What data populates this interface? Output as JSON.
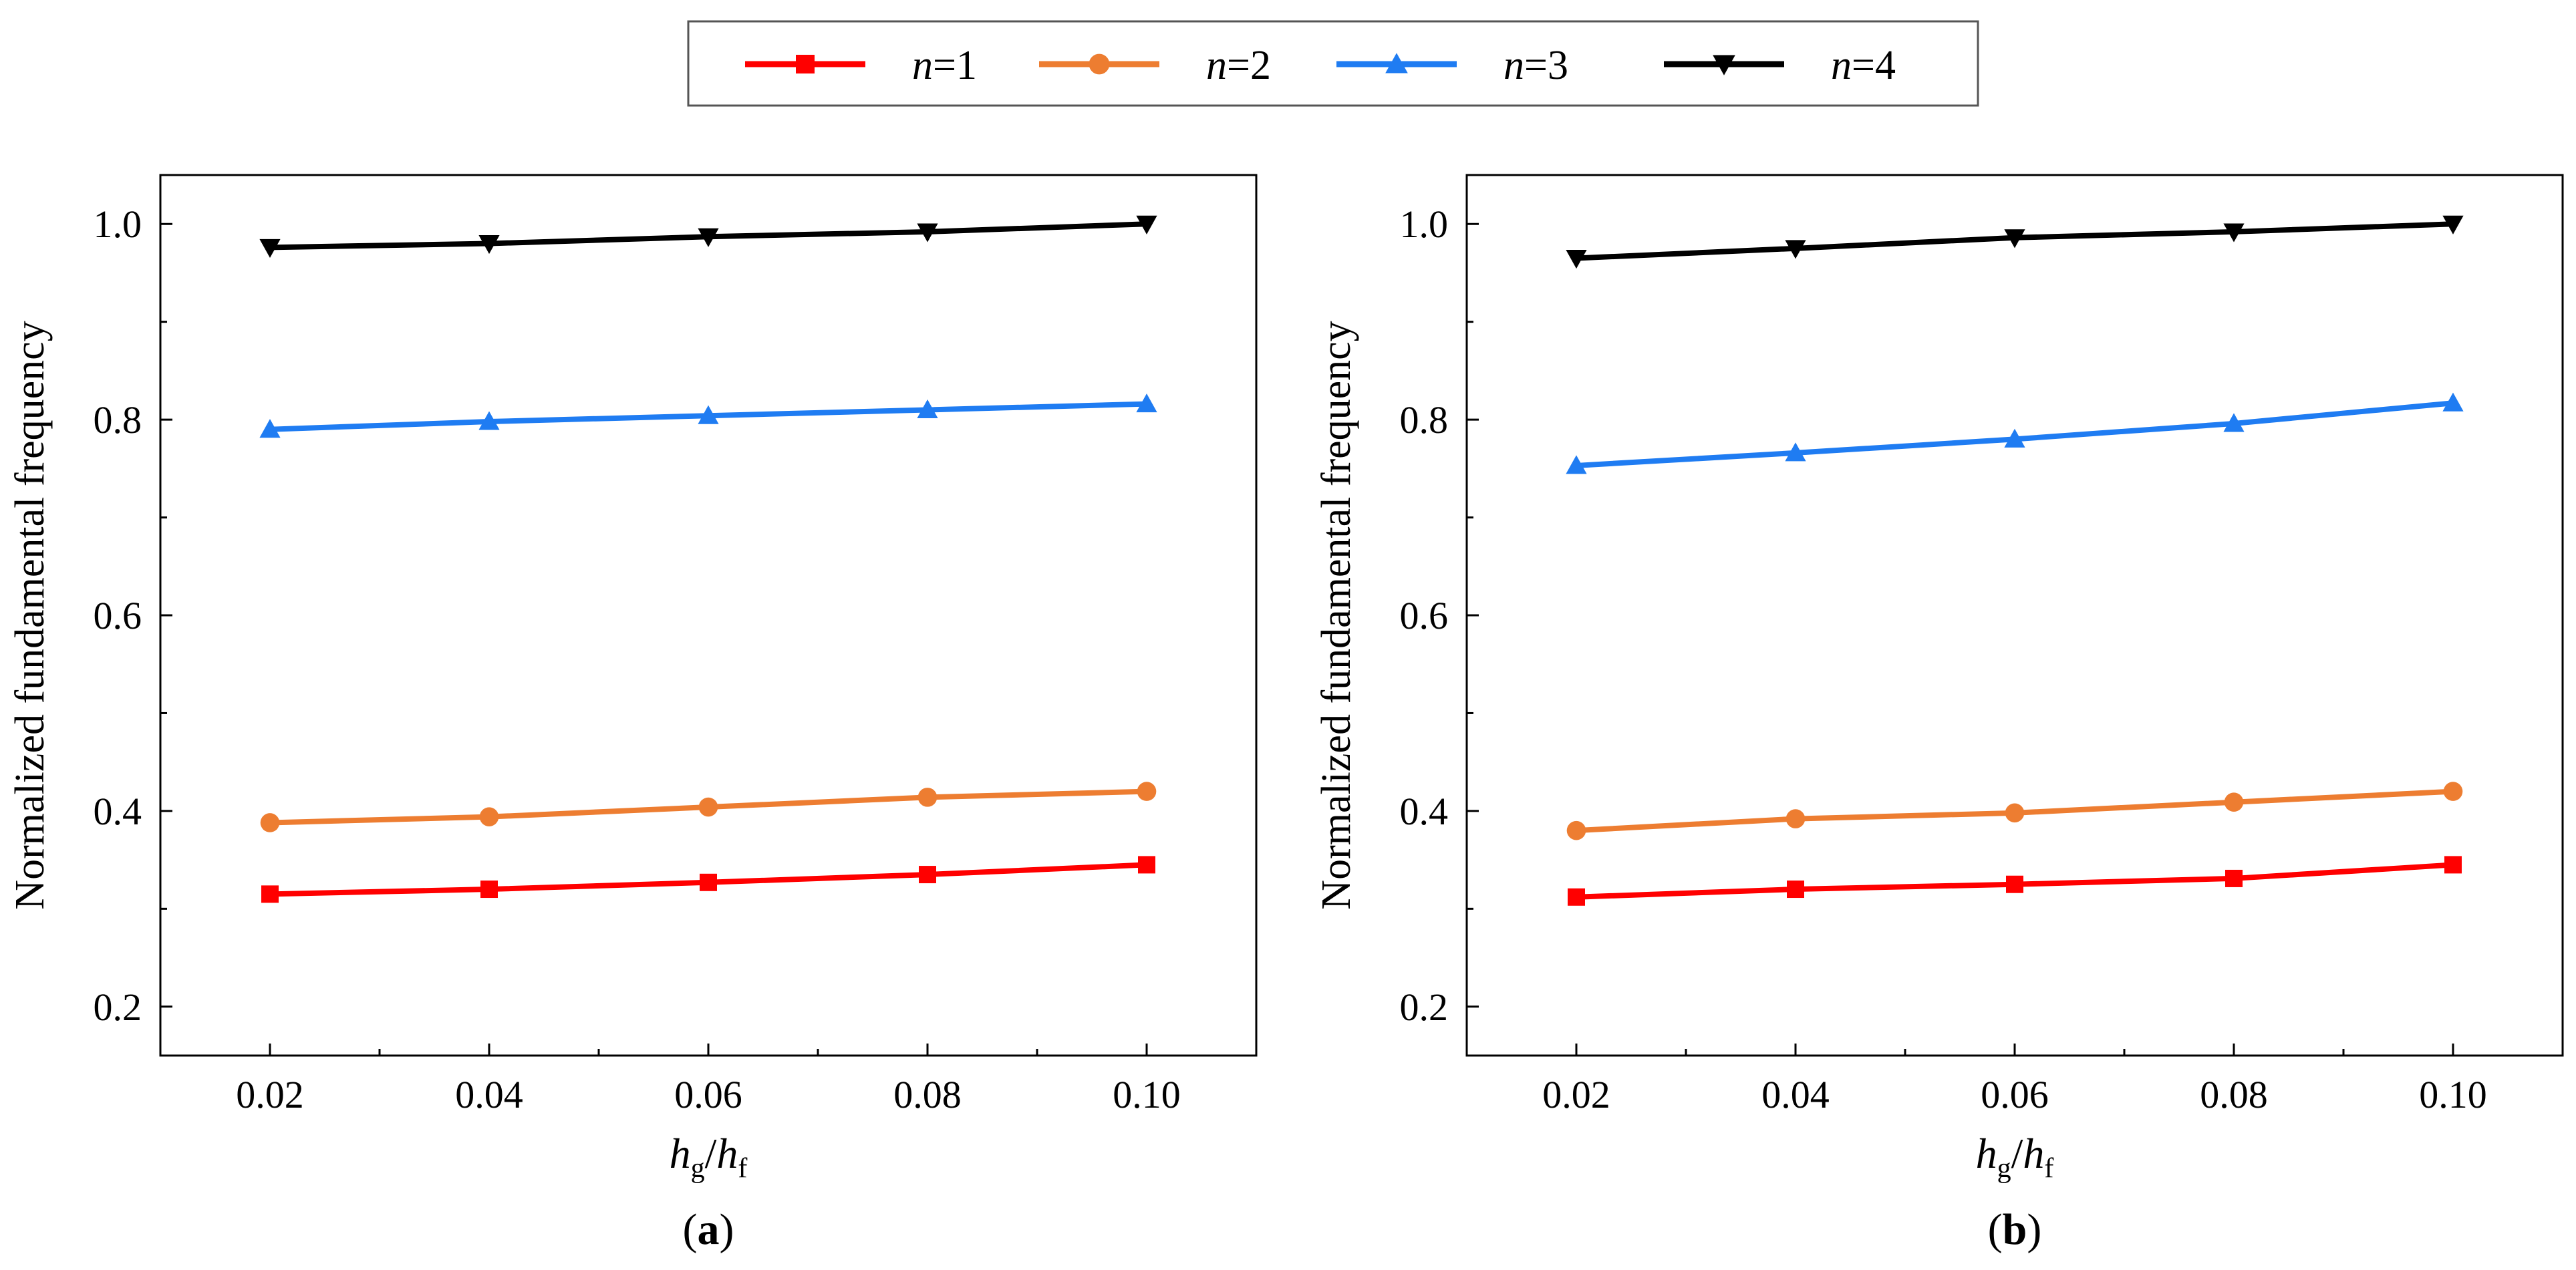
{
  "legend": {
    "entries": [
      {
        "var": "n",
        "label": "=1",
        "series_index": 0
      },
      {
        "var": "n",
        "label": "=2",
        "series_index": 1
      },
      {
        "var": "n",
        "label": "=3",
        "series_index": 2
      },
      {
        "var": "n",
        "label": "=4",
        "series_index": 3
      }
    ]
  },
  "series_styles": [
    {
      "name": "n=1",
      "color": "#ff0000",
      "marker": "square"
    },
    {
      "name": "n=2",
      "color": "#ed7d31",
      "marker": "circle"
    },
    {
      "name": "n=3",
      "color": "#1f7cf2",
      "marker": "triangle-up"
    },
    {
      "name": "n=4",
      "color": "#000000",
      "marker": "triangle-down"
    }
  ],
  "chart_data": [
    {
      "type": "line",
      "panel_label": "a",
      "title": "",
      "xlabel": {
        "main": "h",
        "sub": "g",
        "sep": "/",
        "main2": "h",
        "sub2": "f"
      },
      "ylabel": "Normalized fundamental frequency",
      "x": [
        0.02,
        0.04,
        0.06,
        0.08,
        0.1
      ],
      "x_tick_labels": [
        "0.02",
        "0.04",
        "0.06",
        "0.08",
        "0.10"
      ],
      "y_tick_values": [
        0.2,
        0.4,
        0.6,
        0.8,
        1.0
      ],
      "y_tick_labels": [
        "0.2",
        "0.4",
        "0.6",
        "0.8",
        "1.0"
      ],
      "xlim": [
        0.01,
        0.11
      ],
      "ylim": [
        0.15,
        1.05
      ],
      "grid": false,
      "legend_position": "top-center",
      "series": [
        {
          "name": "n=1",
          "values": [
            0.315,
            0.32,
            0.327,
            0.335,
            0.345
          ]
        },
        {
          "name": "n=2",
          "values": [
            0.388,
            0.394,
            0.404,
            0.414,
            0.42
          ]
        },
        {
          "name": "n=3",
          "values": [
            0.79,
            0.798,
            0.804,
            0.81,
            0.816
          ]
        },
        {
          "name": "n=4",
          "values": [
            0.976,
            0.98,
            0.987,
            0.992,
            1.0
          ]
        }
      ]
    },
    {
      "type": "line",
      "panel_label": "b",
      "title": "",
      "xlabel": {
        "main": "h",
        "sub": "g",
        "sep": "/",
        "main2": "h",
        "sub2": "f"
      },
      "ylabel": "Normalized fundamental frequency",
      "x": [
        0.02,
        0.04,
        0.06,
        0.08,
        0.1
      ],
      "x_tick_labels": [
        "0.02",
        "0.04",
        "0.06",
        "0.08",
        "0.10"
      ],
      "y_tick_values": [
        0.2,
        0.4,
        0.6,
        0.8,
        1.0
      ],
      "y_tick_labels": [
        "0.2",
        "0.4",
        "0.6",
        "0.8",
        "1.0"
      ],
      "xlim": [
        0.01,
        0.11
      ],
      "ylim": [
        0.15,
        1.05
      ],
      "grid": false,
      "legend_position": "top-center",
      "series": [
        {
          "name": "n=1",
          "values": [
            0.312,
            0.32,
            0.325,
            0.331,
            0.345
          ]
        },
        {
          "name": "n=2",
          "values": [
            0.38,
            0.392,
            0.398,
            0.409,
            0.42
          ]
        },
        {
          "name": "n=3",
          "values": [
            0.753,
            0.766,
            0.78,
            0.796,
            0.817
          ]
        },
        {
          "name": "n=4",
          "values": [
            0.965,
            0.975,
            0.986,
            0.992,
            1.0
          ]
        }
      ]
    }
  ]
}
